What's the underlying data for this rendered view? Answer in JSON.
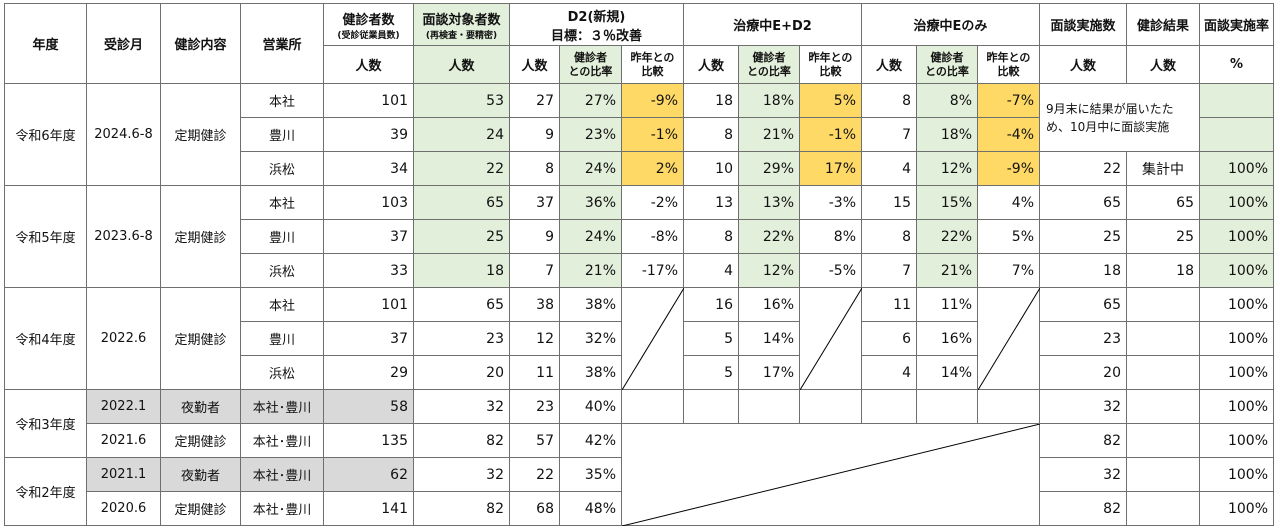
{
  "header": {
    "year": "年度",
    "month": "受診月",
    "content": "健診内容",
    "office": "営業所",
    "examinees": "健診者数",
    "examinees_sub": "(受診従業員数)",
    "targets": "面談対象者数",
    "targets_sub": "(再検査・要精密)",
    "d2_title": "D2(新規)",
    "d2_goal": "目標：３％改善",
    "ed2": "治療中E+D2",
    "e_only": "治療中Eのみ",
    "interview_count": "面談実施数",
    "result": "健診結果",
    "interview_rate": "面談実施率",
    "people": "人数",
    "ratio": "健診者との比率",
    "ratio_l1": "健診者",
    "ratio_l2": "との比率",
    "yoy_l1": "昨年との",
    "yoy_l2": "比較",
    "percent": "%"
  },
  "r6": {
    "year": "令和6年度",
    "month": "2024.6-8",
    "content": "定期健診",
    "note": "9月末に結果が届いたため、10月中に面談実施",
    "honsha": {
      "office": "本社",
      "exam": "101",
      "target": "53",
      "d2n": "27",
      "d2r": "27%",
      "d2y": "-9%",
      "edn": "18",
      "edr": "18%",
      "edy": "5%",
      "en": "8",
      "er": "8%",
      "ey": "-7%"
    },
    "toyokawa": {
      "office": "豊川",
      "exam": "39",
      "target": "24",
      "d2n": "9",
      "d2r": "23%",
      "d2y": "-1%",
      "edn": "8",
      "edr": "21%",
      "edy": "-1%",
      "en": "7",
      "er": "18%",
      "ey": "-4%"
    },
    "hamamatsu": {
      "office": "浜松",
      "exam": "34",
      "target": "22",
      "d2n": "8",
      "d2r": "24%",
      "d2y": "2%",
      "edn": "10",
      "edr": "29%",
      "edy": "17%",
      "en": "4",
      "er": "12%",
      "ey": "-9%",
      "ic": "22",
      "res": "集計中",
      "rate": "100%"
    }
  },
  "r5": {
    "year": "令和5年度",
    "month": "2023.6-8",
    "content": "定期健診",
    "honsha": {
      "office": "本社",
      "exam": "103",
      "target": "65",
      "d2n": "37",
      "d2r": "36%",
      "d2y": "-2%",
      "edn": "13",
      "edr": "13%",
      "edy": "-3%",
      "en": "15",
      "er": "15%",
      "ey": "4%",
      "ic": "65",
      "res": "65",
      "rate": "100%"
    },
    "toyokawa": {
      "office": "豊川",
      "exam": "37",
      "target": "25",
      "d2n": "9",
      "d2r": "24%",
      "d2y": "-8%",
      "edn": "8",
      "edr": "22%",
      "edy": "8%",
      "en": "8",
      "er": "22%",
      "ey": "5%",
      "ic": "25",
      "res": "25",
      "rate": "100%"
    },
    "hamamatsu": {
      "office": "浜松",
      "exam": "33",
      "target": "18",
      "d2n": "7",
      "d2r": "21%",
      "d2y": "-17%",
      "edn": "4",
      "edr": "12%",
      "edy": "-5%",
      "en": "7",
      "er": "21%",
      "ey": "7%",
      "ic": "18",
      "res": "18",
      "rate": "100%"
    }
  },
  "r4": {
    "year": "令和4年度",
    "month": "2022.6",
    "content": "定期健診",
    "honsha": {
      "office": "本社",
      "exam": "101",
      "target": "65",
      "d2n": "38",
      "d2r": "38%",
      "edn": "16",
      "edr": "16%",
      "en": "11",
      "er": "11%",
      "ic": "65",
      "rate": "100%"
    },
    "toyokawa": {
      "office": "豊川",
      "exam": "37",
      "target": "23",
      "d2n": "12",
      "d2r": "32%",
      "edn": "5",
      "edr": "14%",
      "en": "6",
      "er": "16%",
      "ic": "23",
      "rate": "100%"
    },
    "hamamatsu": {
      "office": "浜松",
      "exam": "29",
      "target": "20",
      "d2n": "11",
      "d2r": "38%",
      "edn": "5",
      "edr": "17%",
      "en": "4",
      "er": "14%",
      "ic": "20",
      "rate": "100%"
    }
  },
  "r3": {
    "year": "令和3年度",
    "night": {
      "month": "2022.1",
      "content": "夜勤者",
      "office": "本社･豊川",
      "exam": "58",
      "target": "32",
      "d2n": "23",
      "d2r": "40%",
      "ic": "32",
      "rate": "100%"
    },
    "regular": {
      "month": "2021.6",
      "content": "定期健診",
      "office": "本社･豊川",
      "exam": "135",
      "target": "82",
      "d2n": "57",
      "d2r": "42%",
      "ic": "82",
      "rate": "100%"
    }
  },
  "r2": {
    "year": "令和2年度",
    "night": {
      "month": "2021.1",
      "content": "夜勤者",
      "office": "本社･豊川",
      "exam": "62",
      "target": "32",
      "d2n": "22",
      "d2r": "35%",
      "ic": "32",
      "rate": "100%"
    },
    "regular": {
      "month": "2020.6",
      "content": "定期健診",
      "office": "本社･豊川",
      "exam": "141",
      "target": "82",
      "d2n": "68",
      "d2r": "48%",
      "ic": "82",
      "rate": "100%"
    }
  }
}
